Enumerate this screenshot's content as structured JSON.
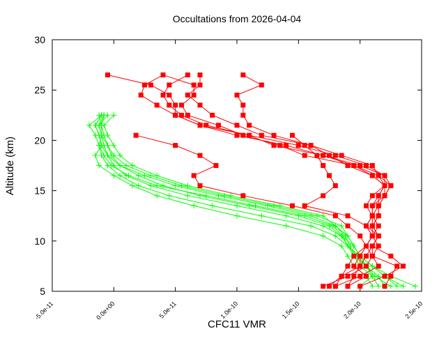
{
  "chart_data": {
    "type": "line",
    "title": "Occultations from 2026-04-04",
    "xlabel": "CFC11 VMR",
    "ylabel": "Altitude (km)",
    "xlim": [
      -5e-11,
      2.5e-10
    ],
    "ylim": [
      5,
      30
    ],
    "xticks": [
      -5e-11,
      0,
      5e-11,
      1e-10,
      1.5e-10,
      2e-10,
      2.5e-10
    ],
    "xtick_labels": [
      "-5.0e-11",
      "0.0e+00",
      "5.0e-11",
      "1.0e-10",
      "1.5e-10",
      "2.0e-10",
      "2.5e-10"
    ],
    "yticks": [
      5,
      10,
      15,
      20,
      25,
      30
    ],
    "ytick_labels": [
      "5",
      "10",
      "15",
      "20",
      "25",
      "30"
    ],
    "grid": false,
    "x_value_scale": 1e-10,
    "colors": {
      "red": "#ff0000",
      "green": "#00ff00"
    },
    "red_altitudes": [
      26.5,
      25.5,
      24.5,
      23.5,
      22.5,
      21.5,
      20.5,
      19.5,
      18.5,
      17.5,
      16.5,
      15.5,
      14.5,
      13.5,
      12.5,
      11.5,
      10.5,
      9.5,
      8.5,
      7.5,
      6.5,
      5.5
    ],
    "red_series": [
      {
        "name": "red-1",
        "marker": "square",
        "values": [
          0.4,
          0.25,
          0.22,
          0.35,
          0.5,
          0.7,
          1.0,
          1.4,
          1.7,
          2.0,
          2.2,
          2.2,
          2.15,
          2.1,
          2.1,
          2.05,
          2.1,
          2.05,
          2.0,
          2.0,
          1.95,
          1.9
        ]
      },
      {
        "name": "red-2",
        "marker": "square",
        "values": [
          0.6,
          0.45,
          0.4,
          0.45,
          0.55,
          0.75,
          1.1,
          1.5,
          1.8,
          2.05,
          2.2,
          2.25,
          2.2,
          2.15,
          2.15,
          2.1,
          2.15,
          2.1,
          2.1,
          2.3,
          2.25,
          2.2
        ]
      },
      {
        "name": "red-3",
        "marker": "square",
        "values": [
          0.7,
          0.7,
          0.6,
          0.7,
          0.8,
          1.0,
          1.2,
          1.6,
          1.75,
          1.9,
          2.1,
          2.2,
          2.2,
          2.1,
          2.1,
          2.05,
          2.1,
          2.05,
          1.95,
          1.9,
          1.85,
          1.8
        ]
      },
      {
        "name": "red-4",
        "marker": "square",
        "values": [
          -0.05,
          0.3,
          0.45,
          0.5,
          0.5,
          0.7,
          1.1,
          1.3,
          1.7,
          1.95,
          2.1,
          2.2,
          2.1,
          2.05,
          2.1,
          2.15,
          2.1,
          2.15,
          2.1,
          2.05,
          1.9,
          1.7
        ]
      },
      {
        "name": "red-5",
        "marker": "square",
        "values": [
          1.05,
          1.2,
          1.0,
          1.05,
          1.05,
          1.1,
          1.3,
          1.6,
          1.85,
          2.1,
          2.15,
          2.2,
          2.15,
          2.15,
          2.1,
          2.1,
          2.15,
          2.1,
          2.25,
          2.35,
          2.2,
          2.0
        ]
      },
      {
        "name": "red-6",
        "marker": "square",
        "values": [
          0.4,
          0.65,
          0.65,
          0.55,
          0.6,
          0.85,
          1.05,
          1.35,
          1.55,
          1.95,
          2.15,
          2.25,
          2.2,
          2.15,
          2.15,
          2.1,
          2.1,
          2.05,
          2.1,
          2.15,
          2.0,
          1.8
        ]
      },
      {
        "name": "red-7",
        "marker": "square",
        "values": [
          null,
          null,
          null,
          null,
          null,
          null,
          0.18,
          0.5,
          0.7,
          0.83,
          0.65,
          0.7,
          1.05,
          1.45,
          1.8,
          1.9,
          2.0,
          2.05,
          2.0,
          1.95,
          2.05,
          1.9
        ]
      },
      {
        "name": "red-8",
        "marker": "square",
        "values": [
          null,
          null,
          null,
          null,
          null,
          null,
          1.45,
          1.55,
          1.65,
          1.7,
          1.75,
          1.8,
          1.7,
          1.55,
          1.9,
          2.05,
          2.15,
          2.1,
          2.05,
          2.0,
          1.85,
          1.75
        ]
      }
    ],
    "green_altitudes": [
      22.5,
      21.5,
      20.5,
      19.5,
      18.5,
      17.5,
      16.5,
      15.5,
      14.5,
      13.5,
      12.5,
      11.5,
      10.5,
      9.5,
      8.5,
      7.5,
      6.5,
      5.5
    ],
    "green_series": [
      {
        "name": "green-1",
        "marker": "plus",
        "values": [
          -0.1,
          -0.15,
          -0.12,
          -0.1,
          -0.05,
          0.05,
          0.2,
          0.4,
          0.7,
          1.1,
          1.5,
          1.75,
          1.85,
          1.9,
          1.95,
          2.05,
          2.1,
          2.15
        ]
      },
      {
        "name": "green-2",
        "marker": "plus",
        "values": [
          -0.05,
          -0.12,
          -0.1,
          -0.08,
          -0.05,
          0.0,
          0.1,
          0.3,
          0.6,
          1.0,
          1.4,
          1.7,
          1.85,
          1.95,
          2.0,
          2.1,
          2.2,
          2.3
        ]
      },
      {
        "name": "green-3",
        "marker": "plus",
        "values": [
          -0.1,
          -0.2,
          -0.15,
          -0.12,
          -0.1,
          -0.05,
          0.05,
          0.2,
          0.45,
          0.8,
          1.2,
          1.6,
          1.8,
          1.9,
          2.0,
          2.05,
          2.15,
          2.2
        ]
      },
      {
        "name": "green-4",
        "marker": "plus",
        "values": [
          -0.08,
          -0.1,
          -0.08,
          -0.05,
          0.0,
          0.1,
          0.3,
          0.55,
          0.9,
          1.3,
          1.65,
          1.85,
          1.9,
          1.95,
          2.0,
          2.1,
          2.25,
          2.45
        ]
      },
      {
        "name": "green-5",
        "marker": "plus",
        "values": [
          0.0,
          -0.08,
          -0.05,
          0.0,
          0.05,
          0.15,
          0.35,
          0.6,
          0.95,
          1.35,
          1.7,
          1.8,
          1.9,
          1.95,
          2.0,
          2.1,
          2.2,
          2.35
        ]
      },
      {
        "name": "green-6",
        "marker": "plus",
        "values": [
          -0.1,
          -0.15,
          -0.12,
          -0.1,
          -0.15,
          -0.12,
          0.0,
          0.15,
          0.35,
          0.65,
          1.0,
          1.4,
          1.7,
          1.85,
          1.9,
          1.95,
          2.05,
          2.1
        ]
      },
      {
        "name": "green-7",
        "marker": "plus",
        "values": [
          -0.12,
          -0.1,
          -0.1,
          -0.05,
          -0.02,
          0.05,
          0.25,
          0.5,
          0.85,
          1.25,
          1.6,
          1.8,
          1.88,
          1.92,
          1.95,
          2.0,
          2.1,
          2.0
        ]
      },
      {
        "name": "green-8",
        "marker": "plus",
        "values": [
          -0.08,
          -0.12,
          -0.1,
          -0.12,
          -0.08,
          -0.02,
          0.12,
          0.35,
          0.75,
          1.15,
          1.55,
          1.78,
          1.86,
          1.9,
          1.98,
          2.05,
          2.12,
          2.25
        ]
      }
    ]
  }
}
